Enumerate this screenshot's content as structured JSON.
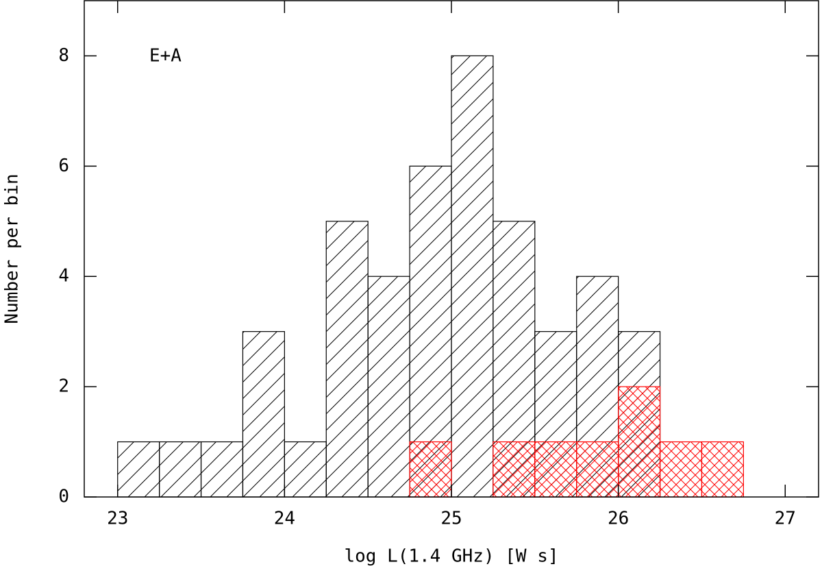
{
  "chart_data": {
    "type": "histogram",
    "xlabel": "log L(1.4 GHz)  [W s]",
    "ylabel": "Number per bin",
    "annotation": "E+A",
    "xlim": [
      22.8,
      27.2
    ],
    "ylim": [
      0,
      9
    ],
    "xticks": [
      23,
      24,
      25,
      26,
      27
    ],
    "yticks": [
      0,
      2,
      4,
      6,
      8
    ],
    "series": [
      {
        "color": "#000000",
        "bins": [
          23,
          23.25,
          23.5,
          23.75,
          24,
          24.25,
          24.5,
          24.75,
          25,
          25.25,
          25.5,
          25.75,
          26,
          26.25
        ],
        "counts": [
          1,
          1,
          1,
          3,
          1,
          5,
          4,
          6,
          8,
          5,
          3,
          4,
          3
        ]
      },
      {
        "color": "#ff0000",
        "bins": [
          24.75,
          25,
          25.25,
          25.5,
          25.75,
          26,
          26.25,
          26.5,
          26.75
        ],
        "counts": [
          1,
          0,
          1,
          1,
          1,
          2,
          1,
          1
        ]
      }
    ]
  }
}
